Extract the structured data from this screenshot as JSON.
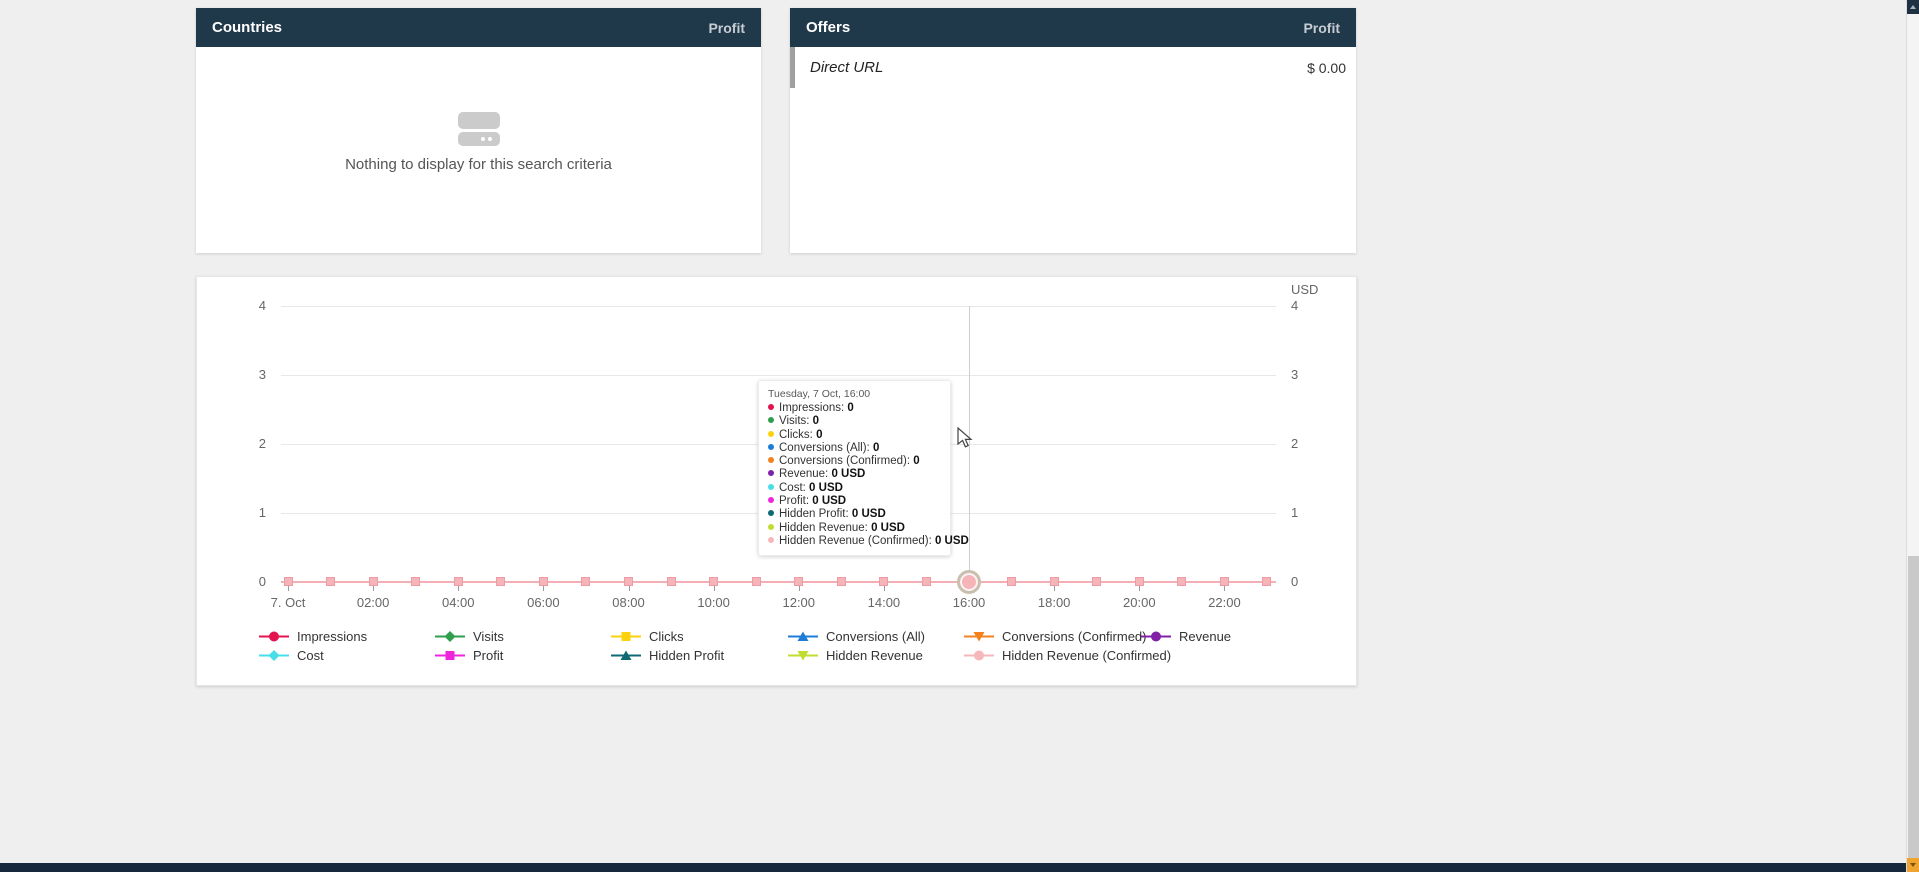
{
  "page": {
    "background": "#efefef",
    "footer_color": "#16293c",
    "header_color": "#20394a"
  },
  "countries_panel": {
    "title": "Countries",
    "metric_label": "Profit",
    "empty_text": "Nothing to display for this search criteria"
  },
  "offers_panel": {
    "title": "Offers",
    "metric_label": "Profit",
    "rows": [
      {
        "label": "Direct URL",
        "value": "$ 0.00"
      }
    ]
  },
  "chart": {
    "axis_unit": "USD",
    "y_ticks": [
      "4",
      "3",
      "2",
      "1",
      "0"
    ],
    "x_tick_labels": [
      "7. Oct",
      "02:00",
      "04:00",
      "06:00",
      "08:00",
      "10:00",
      "12:00",
      "14:00",
      "16:00",
      "18:00",
      "20:00",
      "22:00"
    ],
    "hours_count": 24,
    "hover_hour_index": 16,
    "marker_color": "#f5b5b8",
    "tooltip": {
      "title": "Tuesday, 7 Oct, 16:00",
      "rows": [
        {
          "label": "Impressions",
          "value": "0",
          "color": "#e4134f"
        },
        {
          "label": "Visits",
          "value": "0",
          "color": "#2f9e4d"
        },
        {
          "label": "Clicks",
          "value": "0",
          "color": "#fcd20c"
        },
        {
          "label": "Conversions (All)",
          "value": "0",
          "color": "#1e7cd7"
        },
        {
          "label": "Conversions (Confirmed)",
          "value": "0",
          "color": "#f5801e"
        },
        {
          "label": "Revenue",
          "value": "0 USD",
          "color": "#8021a8"
        },
        {
          "label": "Cost",
          "value": "0 USD",
          "color": "#46dfe8"
        },
        {
          "label": "Profit",
          "value": "0 USD",
          "color": "#ef25dd"
        },
        {
          "label": "Hidden Profit",
          "value": "0 USD",
          "color": "#0e6a72"
        },
        {
          "label": "Hidden Revenue",
          "value": "0 USD",
          "color": "#c3dc31"
        },
        {
          "label": "Hidden Revenue (Confirmed)",
          "value": "0 USD",
          "color": "#f5b7b9"
        }
      ]
    },
    "legend": [
      {
        "label": "Impressions",
        "color": "#e4134f",
        "marker": "circle"
      },
      {
        "label": "Visits",
        "color": "#2f9e4d",
        "marker": "diamond"
      },
      {
        "label": "Clicks",
        "color": "#fcd20c",
        "marker": "square"
      },
      {
        "label": "Conversions (All)",
        "color": "#1e7cd7",
        "marker": "triangle-up"
      },
      {
        "label": "Conversions (Confirmed)",
        "color": "#f5801e",
        "marker": "triangle-down"
      },
      {
        "label": "Revenue",
        "color": "#8021a8",
        "marker": "circle"
      },
      {
        "label": "Cost",
        "color": "#46dfe8",
        "marker": "diamond"
      },
      {
        "label": "Profit",
        "color": "#ef25dd",
        "marker": "square"
      },
      {
        "label": "Hidden Profit",
        "color": "#0e6a72",
        "marker": "triangle-up"
      },
      {
        "label": "Hidden Revenue",
        "color": "#c3dc31",
        "marker": "triangle-down"
      },
      {
        "label": "Hidden Revenue (Confirmed)",
        "color": "#f5b7b9",
        "marker": "circle"
      }
    ]
  },
  "chart_data": {
    "type": "line",
    "title": "",
    "xlabel": "",
    "ylabel": "USD",
    "ylim": [
      0,
      4
    ],
    "grid": true,
    "legend_position": "bottom",
    "x": [
      "7. Oct 00:00",
      "01:00",
      "02:00",
      "03:00",
      "04:00",
      "05:00",
      "06:00",
      "07:00",
      "08:00",
      "09:00",
      "10:00",
      "11:00",
      "12:00",
      "13:00",
      "14:00",
      "15:00",
      "16:00",
      "17:00",
      "18:00",
      "19:00",
      "20:00",
      "21:00",
      "22:00",
      "23:00"
    ],
    "series": [
      {
        "name": "Impressions",
        "values": [
          0,
          0,
          0,
          0,
          0,
          0,
          0,
          0,
          0,
          0,
          0,
          0,
          0,
          0,
          0,
          0,
          0,
          0,
          0,
          0,
          0,
          0,
          0,
          0
        ]
      },
      {
        "name": "Visits",
        "values": [
          0,
          0,
          0,
          0,
          0,
          0,
          0,
          0,
          0,
          0,
          0,
          0,
          0,
          0,
          0,
          0,
          0,
          0,
          0,
          0,
          0,
          0,
          0,
          0
        ]
      },
      {
        "name": "Clicks",
        "values": [
          0,
          0,
          0,
          0,
          0,
          0,
          0,
          0,
          0,
          0,
          0,
          0,
          0,
          0,
          0,
          0,
          0,
          0,
          0,
          0,
          0,
          0,
          0,
          0
        ]
      },
      {
        "name": "Conversions (All)",
        "values": [
          0,
          0,
          0,
          0,
          0,
          0,
          0,
          0,
          0,
          0,
          0,
          0,
          0,
          0,
          0,
          0,
          0,
          0,
          0,
          0,
          0,
          0,
          0,
          0
        ]
      },
      {
        "name": "Conversions (Confirmed)",
        "values": [
          0,
          0,
          0,
          0,
          0,
          0,
          0,
          0,
          0,
          0,
          0,
          0,
          0,
          0,
          0,
          0,
          0,
          0,
          0,
          0,
          0,
          0,
          0,
          0
        ]
      },
      {
        "name": "Revenue",
        "values": [
          0,
          0,
          0,
          0,
          0,
          0,
          0,
          0,
          0,
          0,
          0,
          0,
          0,
          0,
          0,
          0,
          0,
          0,
          0,
          0,
          0,
          0,
          0,
          0
        ]
      },
      {
        "name": "Cost",
        "values": [
          0,
          0,
          0,
          0,
          0,
          0,
          0,
          0,
          0,
          0,
          0,
          0,
          0,
          0,
          0,
          0,
          0,
          0,
          0,
          0,
          0,
          0,
          0,
          0
        ]
      },
      {
        "name": "Profit",
        "values": [
          0,
          0,
          0,
          0,
          0,
          0,
          0,
          0,
          0,
          0,
          0,
          0,
          0,
          0,
          0,
          0,
          0,
          0,
          0,
          0,
          0,
          0,
          0,
          0
        ]
      },
      {
        "name": "Hidden Profit",
        "values": [
          0,
          0,
          0,
          0,
          0,
          0,
          0,
          0,
          0,
          0,
          0,
          0,
          0,
          0,
          0,
          0,
          0,
          0,
          0,
          0,
          0,
          0,
          0,
          0
        ]
      },
      {
        "name": "Hidden Revenue",
        "values": [
          0,
          0,
          0,
          0,
          0,
          0,
          0,
          0,
          0,
          0,
          0,
          0,
          0,
          0,
          0,
          0,
          0,
          0,
          0,
          0,
          0,
          0,
          0,
          0
        ]
      },
      {
        "name": "Hidden Revenue (Confirmed)",
        "values": [
          0,
          0,
          0,
          0,
          0,
          0,
          0,
          0,
          0,
          0,
          0,
          0,
          0,
          0,
          0,
          0,
          0,
          0,
          0,
          0,
          0,
          0,
          0,
          0
        ]
      }
    ]
  }
}
